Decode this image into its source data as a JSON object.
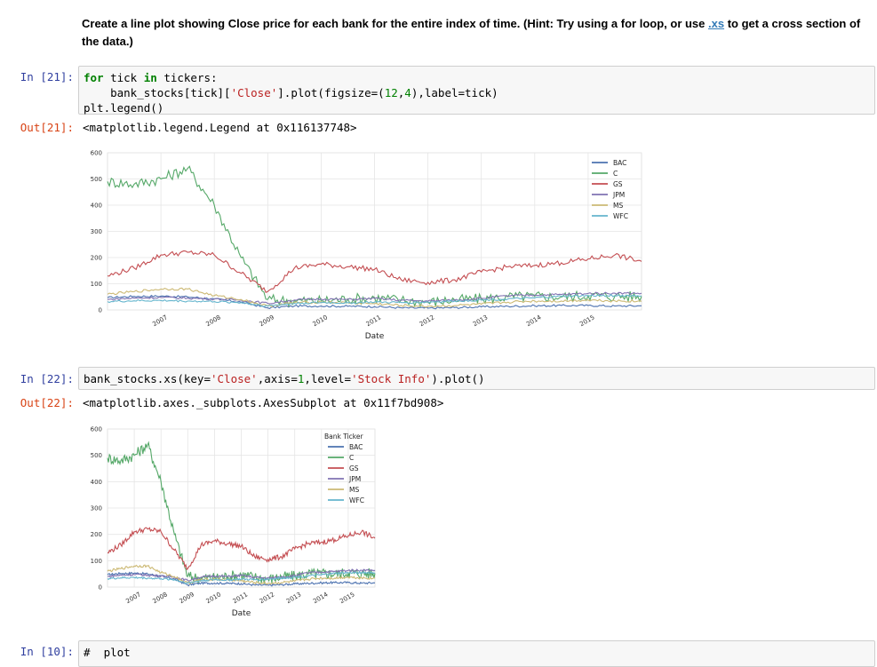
{
  "markdown": {
    "text_before": "Create a line plot showing Close price for each bank for the entire index of time. (Hint: Try using a for loop, or use ",
    "link_text": ".xs",
    "text_after": " to get a cross section of the data.)"
  },
  "cells": [
    {
      "in_prompt": "In [21]:",
      "code_lines": [
        [
          {
            "t": "for",
            "c": "kw"
          },
          {
            "t": " tick "
          },
          {
            "t": "in",
            "c": "kw"
          },
          {
            "t": " tickers:"
          }
        ],
        [
          {
            "t": "    bank_stocks[tick]["
          },
          {
            "t": "'Close'",
            "c": "str"
          },
          {
            "t": "].plot(figsize=("
          },
          {
            "t": "12",
            "c": "num"
          },
          {
            "t": ","
          },
          {
            "t": "4",
            "c": "num"
          },
          {
            "t": "),label=tick)"
          }
        ],
        [
          {
            "t": "plt.legend()"
          }
        ]
      ],
      "out_prompt": "Out[21]:",
      "out_text": "<matplotlib.legend.Legend at 0x116137748>"
    },
    {
      "in_prompt": "In [22]:",
      "code_lines": [
        [
          {
            "t": "bank_stocks.xs(key="
          },
          {
            "t": "'Close'",
            "c": "str"
          },
          {
            "t": ",axis="
          },
          {
            "t": "1",
            "c": "num"
          },
          {
            "t": ",level="
          },
          {
            "t": "'Stock Info'",
            "c": "str"
          },
          {
            "t": ").plot()"
          }
        ]
      ],
      "out_prompt": "Out[22]:",
      "out_text": "<matplotlib.axes._subplots.AxesSubplot at 0x11f7bd908>"
    }
  ],
  "partial_prompt": "In [10]:",
  "partial_code": "#  plot",
  "colors": {
    "BAC": "#4c72b0",
    "C": "#55a868",
    "GS": "#c44e52",
    "JPM": "#8172b2",
    "MS": "#ccb974",
    "WFC": "#64b5cd"
  },
  "chart_data": [
    {
      "type": "line",
      "xlabel": "Date",
      "legend_title": "",
      "legend_position": "top-right",
      "grid": true,
      "ylim": [
        0,
        600
      ],
      "yticks": [
        "0",
        "100",
        "200",
        "300",
        "400",
        "500",
        "600"
      ],
      "xticks": [
        "2007",
        "2008",
        "2009",
        "2010",
        "2011",
        "2012",
        "2013",
        "2014",
        "2015"
      ],
      "x": [
        2006.0,
        2006.5,
        2007.0,
        2007.5,
        2008.0,
        2008.5,
        2009.0,
        2009.5,
        2010.0,
        2010.5,
        2011.0,
        2011.5,
        2012.0,
        2012.5,
        2013.0,
        2013.5,
        2014.0,
        2014.5,
        2015.0,
        2015.5,
        2016.0
      ],
      "series": [
        {
          "name": "BAC",
          "values": [
            47,
            52,
            53,
            50,
            42,
            30,
            8,
            15,
            15,
            14,
            13,
            8,
            7,
            9,
            12,
            14,
            16,
            17,
            17,
            15,
            16
          ]
        },
        {
          "name": "C",
          "values": [
            490,
            480,
            500,
            540,
            400,
            200,
            40,
            35,
            35,
            42,
            47,
            38,
            30,
            38,
            42,
            50,
            52,
            50,
            55,
            52,
            52
          ]
        },
        {
          "name": "GS",
          "values": [
            130,
            160,
            210,
            220,
            210,
            140,
            70,
            160,
            175,
            165,
            155,
            115,
            105,
            115,
            145,
            165,
            170,
            180,
            195,
            210,
            185
          ]
        },
        {
          "name": "JPM",
          "values": [
            40,
            45,
            48,
            45,
            42,
            38,
            25,
            38,
            42,
            40,
            44,
            37,
            34,
            38,
            44,
            54,
            57,
            59,
            63,
            64,
            64
          ]
        },
        {
          "name": "MS",
          "values": [
            60,
            70,
            80,
            80,
            55,
            40,
            15,
            28,
            30,
            27,
            24,
            17,
            14,
            17,
            22,
            30,
            34,
            34,
            38,
            35,
            33
          ]
        },
        {
          "name": "WFC",
          "values": [
            32,
            35,
            36,
            34,
            32,
            28,
            15,
            25,
            28,
            27,
            30,
            28,
            30,
            34,
            38,
            42,
            46,
            52,
            54,
            55,
            54
          ]
        }
      ]
    },
    {
      "type": "line",
      "xlabel": "Date",
      "legend_title": "Bank Ticker",
      "legend_position": "top-right",
      "grid": true,
      "ylim": [
        0,
        600
      ],
      "yticks": [
        "0",
        "100",
        "200",
        "300",
        "400",
        "500",
        "600"
      ],
      "xticks": [
        "2007",
        "2008",
        "2009",
        "2010",
        "2011",
        "2012",
        "2013",
        "2014",
        "2015"
      ],
      "x": [
        2006.0,
        2006.5,
        2007.0,
        2007.5,
        2008.0,
        2008.5,
        2009.0,
        2009.5,
        2010.0,
        2010.5,
        2011.0,
        2011.5,
        2012.0,
        2012.5,
        2013.0,
        2013.5,
        2014.0,
        2014.5,
        2015.0,
        2015.5,
        2016.0
      ],
      "series": [
        {
          "name": "BAC",
          "values": [
            47,
            52,
            53,
            50,
            42,
            30,
            8,
            15,
            15,
            14,
            13,
            8,
            7,
            9,
            12,
            14,
            16,
            17,
            17,
            15,
            16
          ]
        },
        {
          "name": "C",
          "values": [
            490,
            480,
            500,
            540,
            400,
            200,
            40,
            35,
            35,
            42,
            47,
            38,
            30,
            38,
            42,
            50,
            52,
            50,
            55,
            52,
            52
          ]
        },
        {
          "name": "GS",
          "values": [
            130,
            160,
            210,
            220,
            210,
            140,
            70,
            160,
            175,
            165,
            155,
            115,
            105,
            115,
            145,
            165,
            170,
            180,
            195,
            210,
            185
          ]
        },
        {
          "name": "JPM",
          "values": [
            40,
            45,
            48,
            45,
            42,
            38,
            25,
            38,
            42,
            40,
            44,
            37,
            34,
            38,
            44,
            54,
            57,
            59,
            63,
            64,
            64
          ]
        },
        {
          "name": "MS",
          "values": [
            60,
            70,
            80,
            80,
            55,
            40,
            15,
            28,
            30,
            27,
            24,
            17,
            14,
            17,
            22,
            30,
            34,
            34,
            38,
            35,
            33
          ]
        },
        {
          "name": "WFC",
          "values": [
            32,
            35,
            36,
            34,
            32,
            28,
            15,
            25,
            28,
            27,
            30,
            28,
            30,
            34,
            38,
            42,
            46,
            52,
            54,
            55,
            54
          ]
        }
      ]
    }
  ]
}
